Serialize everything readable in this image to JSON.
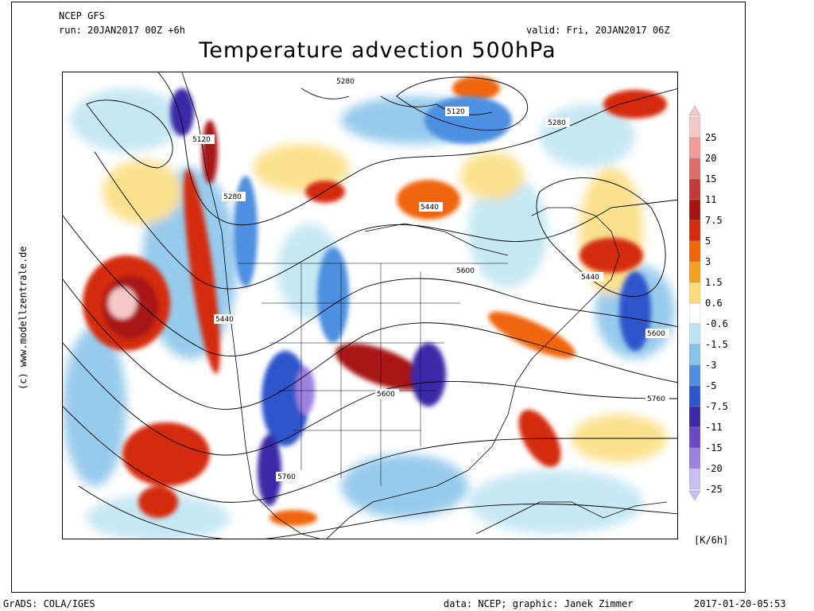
{
  "header": {
    "model": "NCEP GFS",
    "run": "run: 20JAN2017 00Z +6h",
    "valid": "valid: Fri, 20JAN2017 06Z",
    "title": "Temperature advection 500hPa"
  },
  "colorbar": {
    "labels": [
      "25",
      "20",
      "15",
      "11",
      "7.5",
      "5",
      "3",
      "1.5",
      "0.6",
      "-0.6",
      "-1.5",
      "-3",
      "-5",
      "-7.5",
      "-11",
      "-15",
      "-20",
      "-25"
    ],
    "colors": [
      "#f7c8c8",
      "#f29a9a",
      "#e06c6c",
      "#c23a3a",
      "#a81414",
      "#d42a0a",
      "#f0650a",
      "#f5a020",
      "#fbdc7a",
      "#ffffff",
      "#bde4f2",
      "#86c2ea",
      "#4e8fe0",
      "#2d55cc",
      "#3a2aa8",
      "#6a4ac4",
      "#9c82e0",
      "#cbbef4"
    ],
    "unit": "[K/6h]"
  },
  "contour_labels": [
    "5280",
    "5120",
    "5280",
    "5120",
    "5280",
    "5440",
    "5600",
    "5440",
    "5600",
    "5440",
    "5600",
    "5760",
    "5760"
  ],
  "side_credit": "(c) www.modellzentrale.de",
  "footer": {
    "left": "GrADS: COLA/IGES",
    "mid": "data: NCEP; graphic: Janek Zimmer",
    "right": "2017-01-20-05:53"
  },
  "icons": {
    "colorbar_top": "triangle-up-icon",
    "colorbar_bottom": "triangle-down-icon"
  }
}
